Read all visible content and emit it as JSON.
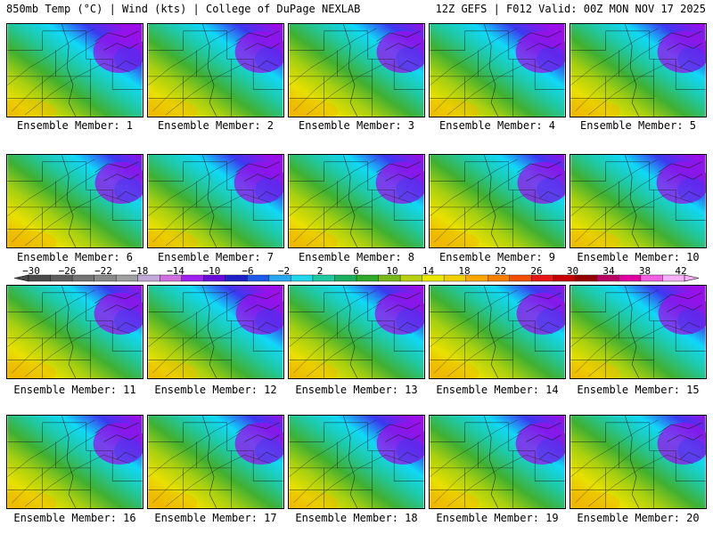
{
  "header": {
    "title": "850mb Temp (°C) | Wind (kts) | College of DuPage NEXLAB",
    "run": "12Z GEFS | F012 Valid: 00Z MON NOV 17 2025"
  },
  "panels": [
    {
      "label": "Ensemble Member: 1"
    },
    {
      "label": "Ensemble Member: 2"
    },
    {
      "label": "Ensemble Member: 3"
    },
    {
      "label": "Ensemble Member: 4"
    },
    {
      "label": "Ensemble Member: 5"
    },
    {
      "label": "Ensemble Member: 6"
    },
    {
      "label": "Ensemble Member: 7"
    },
    {
      "label": "Ensemble Member: 8"
    },
    {
      "label": "Ensemble Member: 9"
    },
    {
      "label": "Ensemble Member: 10"
    },
    {
      "label": "Ensemble Member: 11"
    },
    {
      "label": "Ensemble Member: 12"
    },
    {
      "label": "Ensemble Member: 13"
    },
    {
      "label": "Ensemble Member: 14"
    },
    {
      "label": "Ensemble Member: 15"
    },
    {
      "label": "Ensemble Member: 16"
    },
    {
      "label": "Ensemble Member: 17"
    },
    {
      "label": "Ensemble Member: 18"
    },
    {
      "label": "Ensemble Member: 19"
    },
    {
      "label": "Ensemble Member: 20"
    }
  ],
  "colorbar": {
    "labels": [
      "−30",
      "−26",
      "−22",
      "−18",
      "−14",
      "−10",
      "−6",
      "−2",
      "2",
      "6",
      "10",
      "14",
      "18",
      "22",
      "26",
      "30",
      "34",
      "38",
      "42"
    ],
    "colors": [
      "#4a4a4a",
      "#5e5e5e",
      "#747474",
      "#8a8a8a",
      "#a0a0a0",
      "#c2a8d8",
      "#d070e0",
      "#a020f0",
      "#6a0ad8",
      "#2020c8",
      "#1e5ae8",
      "#28a8f0",
      "#20d8e8",
      "#20c8a0",
      "#18b060",
      "#30a828",
      "#78b818",
      "#b8d010",
      "#e8e800",
      "#f0d000",
      "#f8a800",
      "#f88000",
      "#f05000",
      "#e81818",
      "#c80000",
      "#980000",
      "#b80060",
      "#e000a0",
      "#f060e0",
      "#f8b0f8"
    ]
  },
  "palette": {
    "purple": "#9a10e8",
    "blue": "#3a3af0",
    "cyan": "#10d8f8",
    "teal": "#20c8a0",
    "green": "#40b030",
    "lime": "#a8d010",
    "yellow": "#e8e000",
    "orange": "#f0b800"
  }
}
